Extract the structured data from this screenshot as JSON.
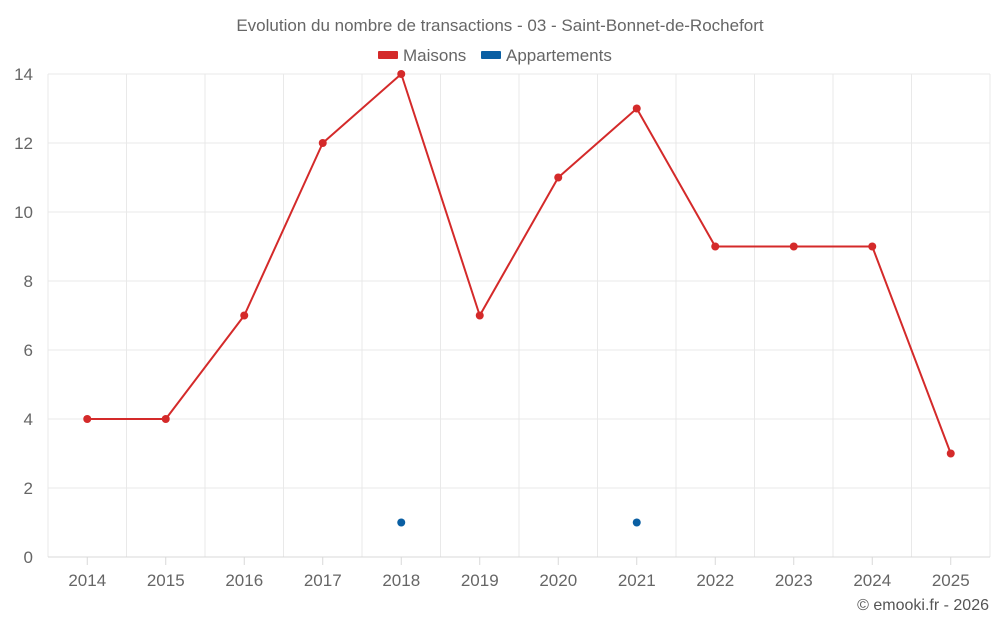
{
  "chart_data": {
    "type": "line",
    "title": "Evolution du nombre de transactions - 03 - Saint-Bonnet-de-Rochefort",
    "categories": [
      "2014",
      "2015",
      "2016",
      "2017",
      "2018",
      "2019",
      "2020",
      "2021",
      "2022",
      "2023",
      "2024",
      "2025"
    ],
    "series": [
      {
        "name": "Maisons",
        "color": "#d42a2a",
        "values": [
          4,
          4,
          7,
          12,
          14,
          7,
          11,
          13,
          9,
          9,
          9,
          3
        ]
      },
      {
        "name": "Appartements",
        "color": "#0a5fa3",
        "values": [
          null,
          null,
          null,
          null,
          1,
          null,
          null,
          1,
          null,
          null,
          null,
          null
        ]
      }
    ],
    "ylim": [
      0,
      14
    ],
    "yticks": [
      0,
      2,
      4,
      6,
      8,
      10,
      12,
      14
    ],
    "grid": true,
    "legend_position": "top-center",
    "xlabel": "",
    "ylabel": ""
  },
  "credit": "© emooki.fr - 2026"
}
